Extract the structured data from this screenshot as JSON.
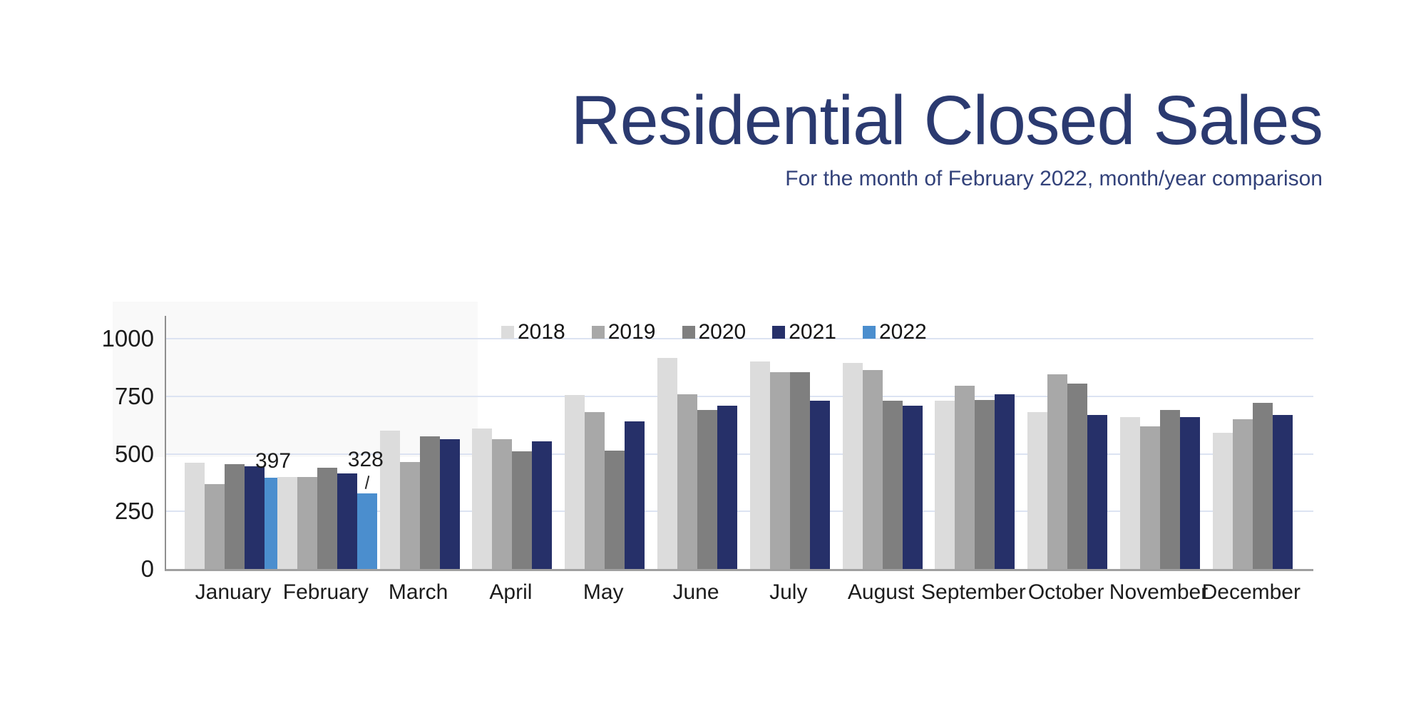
{
  "header": {
    "title": "Residential Closed Sales",
    "subtitle": "For the month of February 2022, month/year comparison"
  },
  "colors": {
    "title_text": "#2b3a70",
    "axis_text": "#1c1c1c",
    "gridline": "#dce3f2",
    "axis_line": "#a0a0a0",
    "series_2018": "#dcdcdc",
    "series_2019": "#a8a8a8",
    "series_2020": "#7f7f7f",
    "series_2021": "#263069",
    "series_2022": "#4b8ece"
  },
  "chart_data": {
    "type": "bar",
    "title": "Residential Closed Sales",
    "subtitle": "For the month of February 2022, month/year comparison",
    "categories": [
      "January",
      "February",
      "March",
      "April",
      "May",
      "June",
      "July",
      "August",
      "September",
      "October",
      "November",
      "December"
    ],
    "series": [
      {
        "name": "2018",
        "color": "#dcdcdc",
        "values": [
          460,
          400,
          600,
          610,
          755,
          915,
          900,
          895,
          730,
          680,
          660,
          590
        ]
      },
      {
        "name": "2019",
        "color": "#a8a8a8",
        "values": [
          370,
          400,
          465,
          565,
          680,
          760,
          855,
          865,
          795,
          845,
          620,
          650
        ]
      },
      {
        "name": "2020",
        "color": "#7f7f7f",
        "values": [
          455,
          440,
          575,
          510,
          515,
          690,
          855,
          730,
          735,
          805,
          690,
          720
        ]
      },
      {
        "name": "2021",
        "color": "#263069",
        "values": [
          445,
          415,
          565,
          555,
          640,
          710,
          730,
          710,
          760,
          670,
          660,
          670
        ]
      },
      {
        "name": "2022",
        "color": "#4b8ece",
        "values": [
          397,
          328,
          null,
          null,
          null,
          null,
          null,
          null,
          null,
          null,
          null,
          null
        ]
      }
    ],
    "annotations": [
      {
        "category": "January",
        "series": "2022",
        "label": "397",
        "leader": false
      },
      {
        "category": "February",
        "series": "2022",
        "label": "328",
        "leader": true
      }
    ],
    "y_axis": {
      "min": 0,
      "max": 1000,
      "ticks": [
        0,
        250,
        500,
        750,
        1000
      ]
    },
    "x_axis_label": "",
    "y_axis_label": "",
    "grid": true,
    "legend_position": "top-center-inside"
  }
}
